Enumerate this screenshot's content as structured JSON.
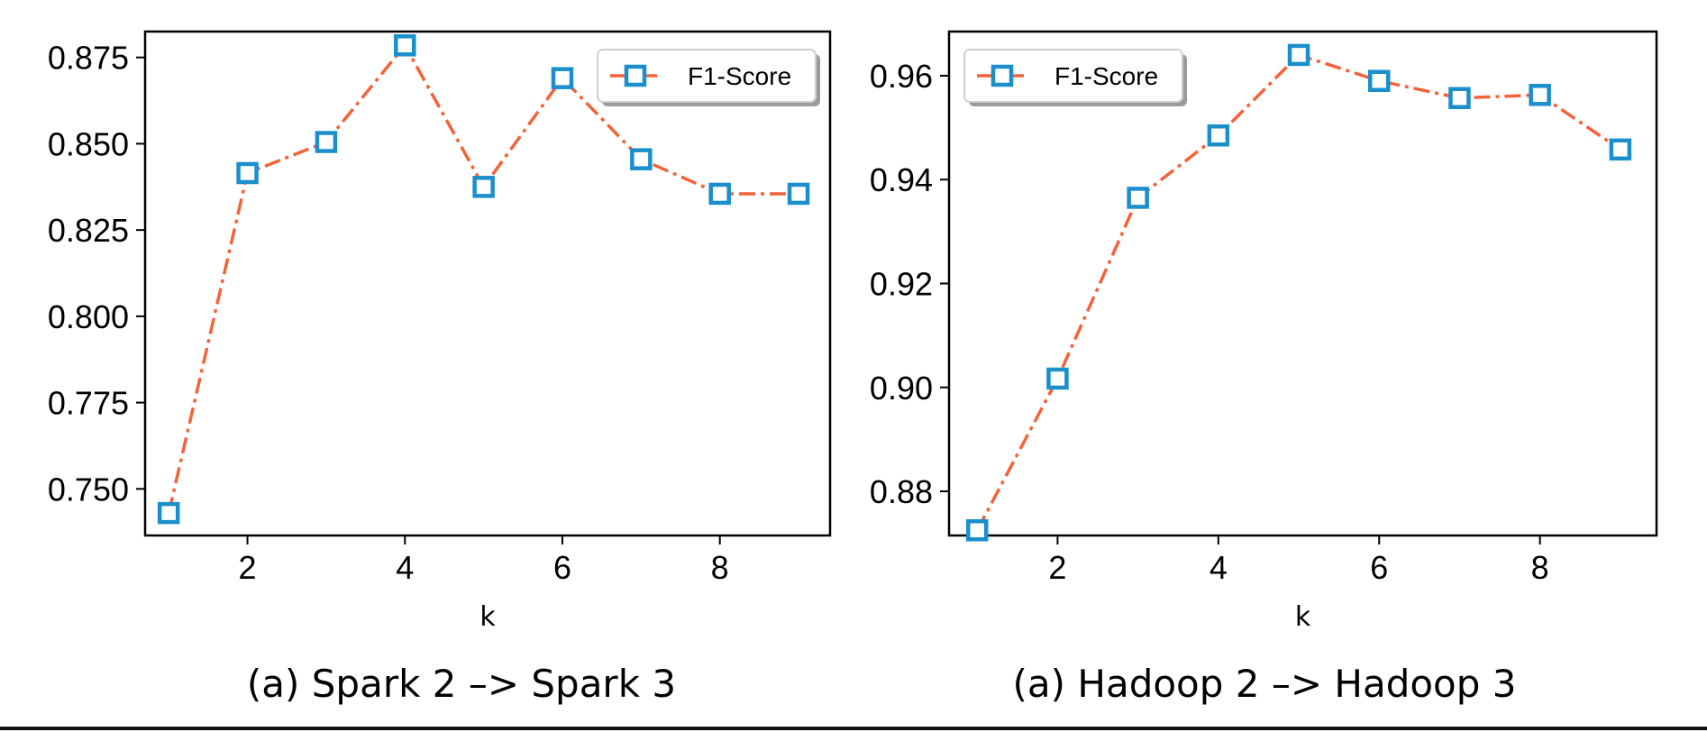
{
  "colors": {
    "line": "#f4623a",
    "marker": "#1a8fcc",
    "axis": "#000000"
  },
  "panels": [
    {
      "caption": "(a) Spark 2 –> Spark 3"
    },
    {
      "caption": "(a) Hadoop 2 –> Hadoop 3"
    }
  ],
  "chart_data": [
    {
      "type": "line",
      "title": "",
      "xlabel": "k",
      "ylabel": "",
      "x": [
        1,
        2,
        3,
        4,
        5,
        6,
        7,
        8,
        9
      ],
      "series": [
        {
          "name": "F1-Score",
          "values": [
            0.743,
            0.8415,
            0.8505,
            0.8785,
            0.8375,
            0.869,
            0.8455,
            0.8355,
            0.8355
          ]
        }
      ],
      "xlim": [
        0.7,
        9.4
      ],
      "ylim": [
        0.7365,
        0.8825
      ],
      "xticks": [
        2,
        4,
        6,
        8
      ],
      "yticks": [
        0.75,
        0.775,
        0.8,
        0.825,
        0.85,
        0.875
      ],
      "ytick_labels": [
        "0.750",
        "0.775",
        "0.800",
        "0.825",
        "0.850",
        "0.875"
      ],
      "line_style": "dash-dot",
      "marker": "square",
      "legend_position": "top-right",
      "grid": false
    },
    {
      "type": "line",
      "title": "",
      "xlabel": "k",
      "ylabel": "",
      "x": [
        1,
        2,
        3,
        4,
        5,
        6,
        7,
        8,
        9
      ],
      "series": [
        {
          "name": "F1-Score",
          "values": [
            0.8725,
            0.9017,
            0.9365,
            0.9485,
            0.964,
            0.959,
            0.9557,
            0.9563,
            0.9458
          ]
        }
      ],
      "xlim": [
        0.65,
        9.45
      ],
      "ylim": [
        0.8715,
        0.9685
      ],
      "xticks": [
        2,
        4,
        6,
        8
      ],
      "yticks": [
        0.88,
        0.9,
        0.92,
        0.94,
        0.96
      ],
      "ytick_labels": [
        "0.88",
        "0.90",
        "0.92",
        "0.94",
        "0.96"
      ],
      "line_style": "dash-dot",
      "marker": "square",
      "legend_position": "top-left",
      "grid": false
    }
  ]
}
